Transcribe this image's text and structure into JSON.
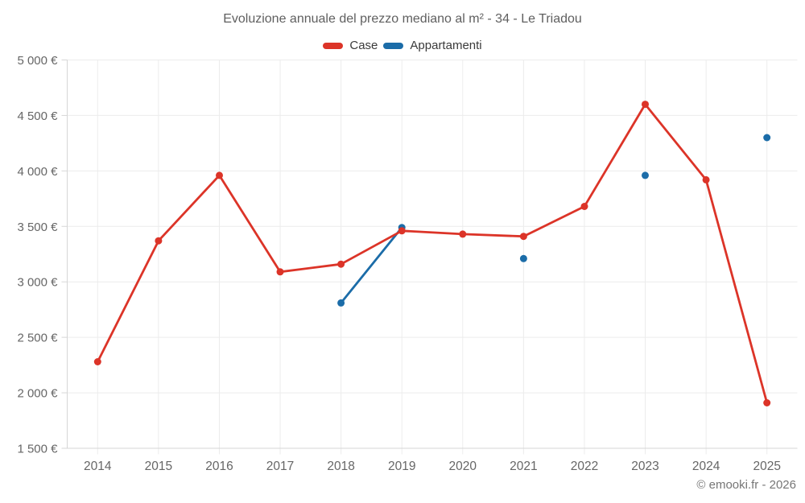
{
  "footer": {
    "credit": "© emooki.fr - 2026"
  },
  "chart_data": {
    "type": "line",
    "title": "Evoluzione annuale del prezzo mediano al m² - 34 - Le Triadou",
    "xlabel": "",
    "ylabel": "",
    "categories": [
      "2014",
      "2015",
      "2016",
      "2017",
      "2018",
      "2019",
      "2020",
      "2021",
      "2022",
      "2023",
      "2024",
      "2025"
    ],
    "series": [
      {
        "name": "Case",
        "color": "#dc3428",
        "values": [
          2280,
          3370,
          3960,
          3090,
          3160,
          3460,
          3430,
          3410,
          3680,
          4600,
          3920,
          1910
        ]
      },
      {
        "name": "Appartamenti",
        "color": "#1b6ca8",
        "values": [
          null,
          null,
          null,
          null,
          2810,
          3490,
          null,
          3210,
          null,
          3960,
          null,
          4300
        ]
      }
    ],
    "ylim": [
      1500,
      5000
    ],
    "y_ticks": [
      5000,
      4500,
      4000,
      3500,
      3000,
      2500,
      2000,
      1500
    ],
    "y_tick_labels": [
      "5 000 €",
      "4 500 €",
      "4 000 €",
      "3 500 €",
      "3 000 €",
      "2 500 €",
      "2 000 €",
      "1 500 €"
    ],
    "grid": true,
    "legend_position": "top",
    "colors": {
      "grid": "#ececec",
      "axis": "#d6d6d6",
      "tick_text": "#666666",
      "title_text": "#5f5f5f"
    }
  }
}
